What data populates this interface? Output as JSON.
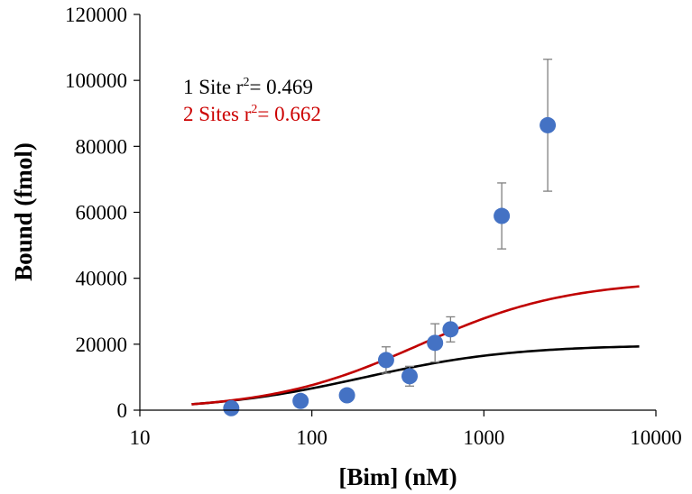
{
  "chart_data": {
    "type": "scatter",
    "xlabel": "[Bim] (nM)",
    "ylabel": "Bound (fmol)",
    "xscale": "log",
    "xlim": [
      10,
      10000
    ],
    "ylim": [
      0,
      120000
    ],
    "xticks": [
      10,
      100,
      1000,
      10000
    ],
    "yticks": [
      0,
      20000,
      40000,
      60000,
      80000,
      100000,
      120000
    ],
    "xtick_labels": [
      "10",
      "100",
      "1000",
      "10000"
    ],
    "ytick_labels": [
      "0",
      "20000",
      "40000",
      "60000",
      "80000",
      "100000",
      "120000"
    ],
    "grid": false,
    "annotations": [
      {
        "prefix": "1 Site r",
        "sup": "2",
        "suffix": "= 0.469",
        "color": "#000000"
      },
      {
        "prefix": "2 Sites r",
        "sup": "2",
        "suffix": "= 0.662",
        "color": "#cc0000"
      }
    ],
    "points": [
      {
        "x": 34,
        "y": 600,
        "err": 0
      },
      {
        "x": 86,
        "y": 2800,
        "err": 0
      },
      {
        "x": 160,
        "y": 4500,
        "err": 0
      },
      {
        "x": 270,
        "y": 15200,
        "err": 4000
      },
      {
        "x": 370,
        "y": 10300,
        "err": 3000
      },
      {
        "x": 520,
        "y": 20400,
        "err": 5800
      },
      {
        "x": 640,
        "y": 24500,
        "err": 3800
      },
      {
        "x": 1270,
        "y": 58900,
        "err": 10000
      },
      {
        "x": 2350,
        "y": 86400,
        "err": 20000
      }
    ],
    "marker_color": "#4472c4",
    "errorbar_color": "#808080",
    "fits": [
      {
        "bmax": 19800,
        "kd": 200,
        "color": "#000000",
        "x_range": [
          20,
          8000
        ]
      },
      {
        "bmax": 39500,
        "kd": 420,
        "color": "#c00000",
        "x_range": [
          20,
          8000
        ]
      }
    ]
  }
}
